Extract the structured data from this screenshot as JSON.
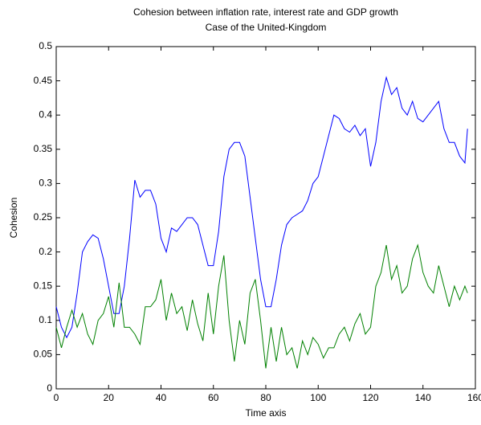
{
  "chart_data": {
    "type": "line",
    "title": "Cohesion between inflation rate, interest rate and GDP growth",
    "subtitle": "Case of the United-Kingdom",
    "x_label": "Time axis",
    "y_label": "Cohesion",
    "x": [
      0,
      2,
      4,
      6,
      8,
      10,
      12,
      14,
      16,
      18,
      20,
      22,
      24,
      26,
      28,
      30,
      32,
      34,
      36,
      38,
      40,
      42,
      44,
      46,
      48,
      50,
      52,
      54,
      56,
      58,
      60,
      62,
      64,
      66,
      68,
      70,
      72,
      74,
      76,
      78,
      80,
      82,
      84,
      86,
      88,
      90,
      92,
      94,
      96,
      98,
      100,
      102,
      104,
      106,
      108,
      110,
      112,
      114,
      116,
      118,
      120,
      122,
      124,
      126,
      128,
      130,
      132,
      134,
      136,
      138,
      140,
      142,
      144,
      146,
      148,
      150,
      152,
      154,
      156,
      157
    ],
    "series": [
      {
        "color": "#0000ff",
        "values": [
          0.12,
          0.09,
          0.075,
          0.09,
          0.14,
          0.2,
          0.215,
          0.225,
          0.22,
          0.19,
          0.15,
          0.11,
          0.11,
          0.15,
          0.22,
          0.305,
          0.28,
          0.29,
          0.29,
          0.27,
          0.22,
          0.2,
          0.235,
          0.23,
          0.24,
          0.25,
          0.25,
          0.24,
          0.21,
          0.18,
          0.18,
          0.23,
          0.31,
          0.35,
          0.36,
          0.36,
          0.34,
          0.28,
          0.22,
          0.16,
          0.12,
          0.12,
          0.16,
          0.21,
          0.24,
          0.25,
          0.255,
          0.26,
          0.275,
          0.3,
          0.31,
          0.34,
          0.37,
          0.4,
          0.395,
          0.38,
          0.375,
          0.385,
          0.37,
          0.38,
          0.325,
          0.36,
          0.42,
          0.455,
          0.43,
          0.44,
          0.41,
          0.4,
          0.42,
          0.395,
          0.39,
          0.4,
          0.41,
          0.42,
          0.38,
          0.36,
          0.36,
          0.34,
          0.33,
          0.38
        ]
      },
      {
        "color": "#008000",
        "values": [
          0.09,
          0.06,
          0.09,
          0.115,
          0.09,
          0.11,
          0.08,
          0.065,
          0.1,
          0.11,
          0.135,
          0.09,
          0.155,
          0.09,
          0.09,
          0.08,
          0.065,
          0.12,
          0.12,
          0.13,
          0.16,
          0.1,
          0.14,
          0.11,
          0.12,
          0.085,
          0.13,
          0.095,
          0.07,
          0.14,
          0.08,
          0.15,
          0.195,
          0.1,
          0.04,
          0.1,
          0.065,
          0.14,
          0.16,
          0.1,
          0.03,
          0.09,
          0.04,
          0.09,
          0.05,
          0.06,
          0.03,
          0.07,
          0.05,
          0.075,
          0.065,
          0.045,
          0.06,
          0.06,
          0.08,
          0.09,
          0.07,
          0.095,
          0.11,
          0.08,
          0.09,
          0.15,
          0.17,
          0.21,
          0.16,
          0.18,
          0.14,
          0.15,
          0.19,
          0.21,
          0.17,
          0.15,
          0.14,
          0.18,
          0.15,
          0.12,
          0.15,
          0.13,
          0.15,
          0.14
        ]
      }
    ],
    "xlim": [
      0,
      160
    ],
    "xticks": [
      0,
      20,
      40,
      60,
      80,
      100,
      120,
      140,
      160
    ],
    "ylim": [
      0,
      0.5
    ],
    "yticks": [
      0,
      0.05,
      0.1,
      0.15,
      0.2,
      0.25,
      0.3,
      0.35,
      0.4,
      0.45,
      0.5
    ],
    "grid": false
  }
}
